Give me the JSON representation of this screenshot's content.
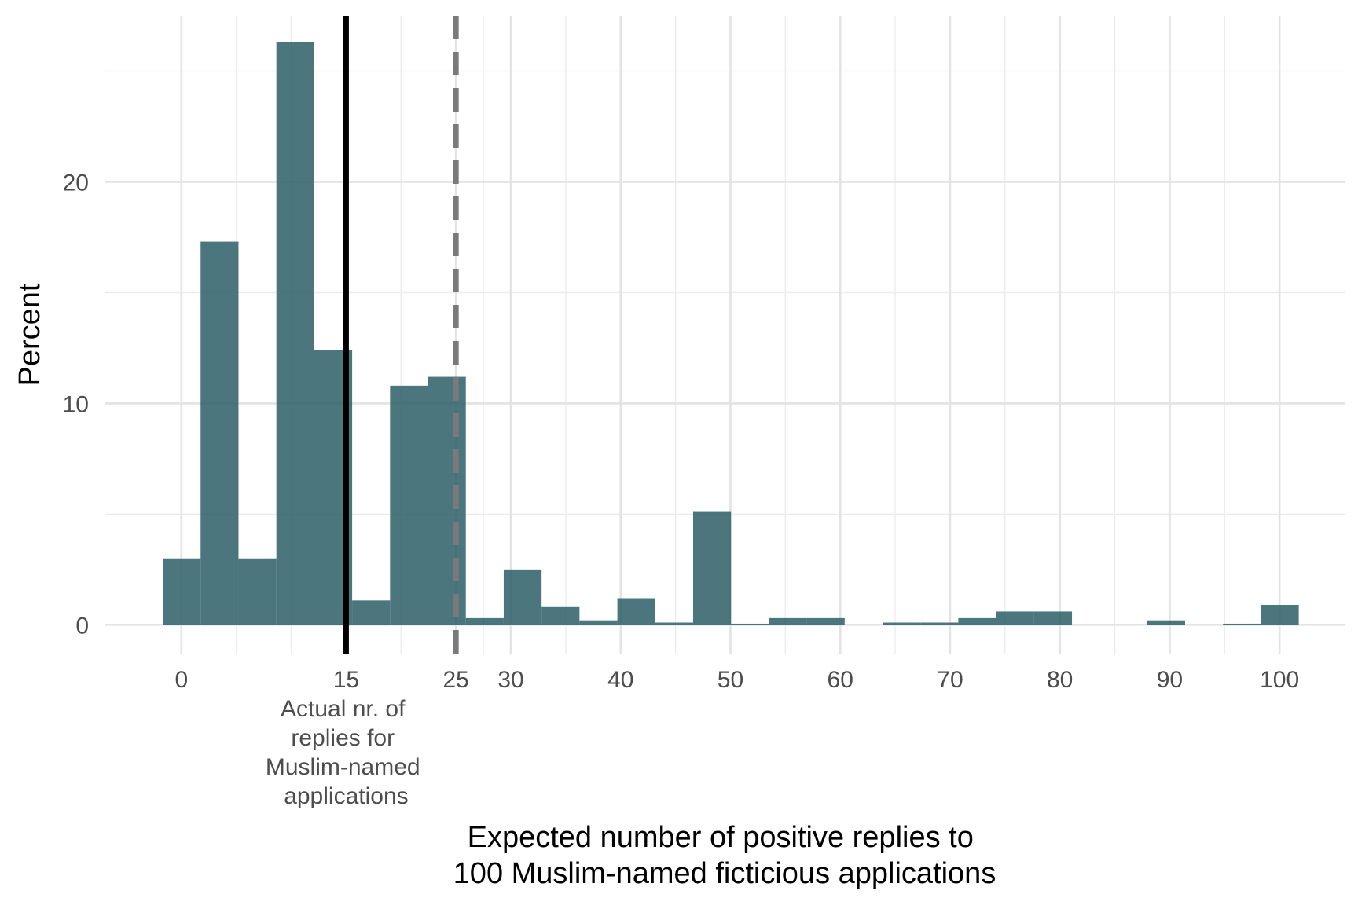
{
  "chart_data": {
    "type": "bar",
    "subtype": "histogram",
    "xlabel": [
      "Expected number of positive replies to",
      "100 Muslim-named ficticious applications"
    ],
    "ylabel": "Percent",
    "xlim": [
      -7,
      106
    ],
    "ylim": [
      -1.3,
      27.5
    ],
    "x_ticks": [
      {
        "value": 0,
        "label": "0"
      },
      {
        "value": 15,
        "label": "15"
      },
      {
        "value": 25,
        "label": "25"
      },
      {
        "value": 30,
        "label": "30"
      },
      {
        "value": 40,
        "label": "40"
      },
      {
        "value": 50,
        "label": "50"
      },
      {
        "value": 60,
        "label": "60"
      },
      {
        "value": 70,
        "label": "70"
      },
      {
        "value": 80,
        "label": "80"
      },
      {
        "value": 90,
        "label": "90"
      },
      {
        "value": 100,
        "label": "100"
      }
    ],
    "x_minor_gridlines": [
      5,
      10,
      20,
      27.5,
      35,
      45,
      55,
      65,
      75,
      85,
      95
    ],
    "y_ticks": [
      0,
      10,
      20
    ],
    "y_minor_gridlines": [
      5,
      15,
      25
    ],
    "bar_color": "#2f5f68",
    "bar_opacity": 0.86,
    "bin_width": 3.45,
    "bins": [
      {
        "x0": -1.7,
        "x1": 1.75,
        "value": 3.0
      },
      {
        "x0": 1.75,
        "x1": 5.2,
        "value": 17.3
      },
      {
        "x0": 5.2,
        "x1": 8.65,
        "value": 3.0
      },
      {
        "x0": 8.65,
        "x1": 12.1,
        "value": 26.3
      },
      {
        "x0": 12.1,
        "x1": 15.55,
        "value": 12.4
      },
      {
        "x0": 15.55,
        "x1": 19.0,
        "value": 1.1
      },
      {
        "x0": 19.0,
        "x1": 22.45,
        "value": 10.8
      },
      {
        "x0": 22.45,
        "x1": 25.9,
        "value": 11.2
      },
      {
        "x0": 25.9,
        "x1": 29.35,
        "value": 0.3
      },
      {
        "x0": 29.35,
        "x1": 32.8,
        "value": 2.5
      },
      {
        "x0": 32.8,
        "x1": 36.25,
        "value": 0.8
      },
      {
        "x0": 36.25,
        "x1": 39.7,
        "value": 0.2
      },
      {
        "x0": 39.7,
        "x1": 43.15,
        "value": 1.2
      },
      {
        "x0": 43.15,
        "x1": 46.6,
        "value": 0.1
      },
      {
        "x0": 46.6,
        "x1": 50.05,
        "value": 5.1
      },
      {
        "x0": 50.05,
        "x1": 53.5,
        "value": 0.05
      },
      {
        "x0": 53.5,
        "x1": 56.95,
        "value": 0.3
      },
      {
        "x0": 56.95,
        "x1": 60.4,
        "value": 0.3
      },
      {
        "x0": 63.85,
        "x1": 67.3,
        "value": 0.1
      },
      {
        "x0": 67.3,
        "x1": 70.75,
        "value": 0.1
      },
      {
        "x0": 70.75,
        "x1": 74.2,
        "value": 0.3
      },
      {
        "x0": 74.2,
        "x1": 77.65,
        "value": 0.6
      },
      {
        "x0": 77.65,
        "x1": 81.1,
        "value": 0.6
      },
      {
        "x0": 87.95,
        "x1": 91.4,
        "value": 0.2
      },
      {
        "x0": 94.85,
        "x1": 98.3,
        "value": 0.05
      },
      {
        "x0": 98.3,
        "x1": 101.75,
        "value": 0.9
      }
    ],
    "reference_lines": [
      {
        "x": 15,
        "style": "solid",
        "color": "#000000"
      },
      {
        "x": 25,
        "style": "dashed",
        "color": "#7a7a7a"
      }
    ],
    "annotation": {
      "x": 15,
      "lines": [
        "Actual nr. of",
        "replies for",
        "Muslim-named",
        "applications"
      ]
    }
  }
}
